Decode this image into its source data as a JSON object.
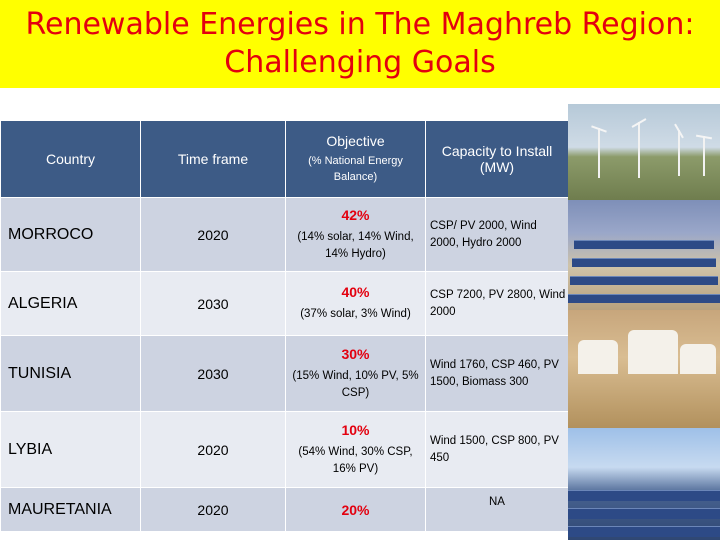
{
  "title": {
    "line1": "Renewable Energies in The Maghreb Region:",
    "line2": "Challenging Goals"
  },
  "table": {
    "headers": {
      "country": "Country",
      "time_frame": "Time frame",
      "objective": "Objective",
      "objective_sub": "(% National Energy Balance)",
      "capacity": "Capacity to Install (MW)"
    },
    "rows": [
      {
        "country": "MORROCO",
        "time_frame": "2020",
        "objective_pct": "42%",
        "objective_detail": "(14% solar, 14% Wind, 14% Hydro)",
        "capacity": "CSP/ PV 2000, Wind 2000, Hydro 2000"
      },
      {
        "country": "ALGERIA",
        "time_frame": "2030",
        "objective_pct": "40%",
        "objective_detail": "(37% solar, 3% Wind)",
        "capacity": "CSP 7200, PV 2800, Wind 2000"
      },
      {
        "country": "TUNISIA",
        "time_frame": "2030",
        "objective_pct": "30%",
        "objective_detail": "(15% Wind, 10% PV, 5% CSP)",
        "capacity": "Wind 1760, CSP 460, PV 1500, Biomass 300"
      },
      {
        "country": "LYBIA",
        "time_frame": "2020",
        "objective_pct": "10%",
        "objective_detail": "(54% Wind, 30% CSP, 16% PV)",
        "capacity": "Wind 1500, CSP 800, PV 450"
      },
      {
        "country": "MAURETANIA",
        "time_frame": "2020",
        "objective_pct": "20%",
        "objective_detail": "",
        "capacity": "NA"
      }
    ]
  },
  "photos": [
    "wind-farm-photo",
    "solar-thermal-plant-photo",
    "village-photo",
    "solar-panels-photo"
  ]
}
